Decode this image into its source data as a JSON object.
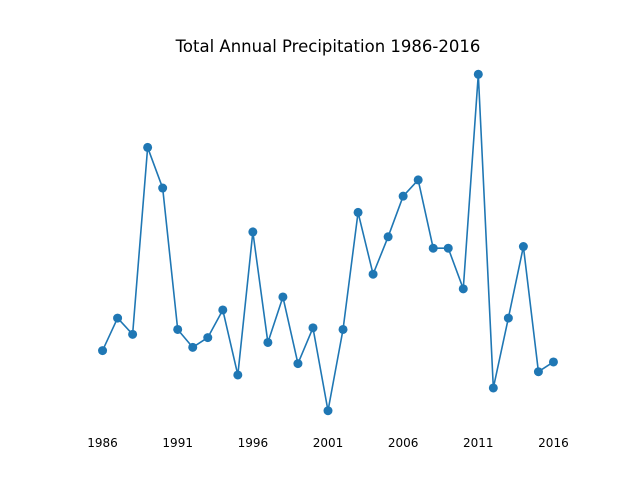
{
  "chart_data": {
    "type": "line",
    "title": "Total Annual Precipitation 1986-2016",
    "xlabel": "",
    "ylabel": "",
    "x_ticks": [
      "1986",
      "1991",
      "1996",
      "2001",
      "2006",
      "2011",
      "2016"
    ],
    "y_axis_visible": false,
    "grid": false,
    "legend": "none",
    "color": "#1f77b4",
    "series": [
      {
        "x": [
          1986,
          1987,
          1988,
          1989,
          1990,
          1991,
          1992,
          1993,
          1994,
          1995,
          1996,
          1997,
          1998,
          1999,
          2000,
          2001,
          2002,
          2003,
          2004,
          2005,
          2006,
          2007,
          2008,
          2009,
          2010,
          2011,
          2012,
          2013,
          2014,
          2015,
          2016
        ],
        "values": [
          17.5,
          19.5,
          18.5,
          30.0,
          27.5,
          18.8,
          17.7,
          18.3,
          20.0,
          16.0,
          24.8,
          18.0,
          20.8,
          16.7,
          18.9,
          13.8,
          18.8,
          26.0,
          22.2,
          24.5,
          27.0,
          28.0,
          23.8,
          23.8,
          21.3,
          34.5,
          15.2,
          19.5,
          23.9,
          16.2,
          16.8
        ]
      }
    ]
  }
}
